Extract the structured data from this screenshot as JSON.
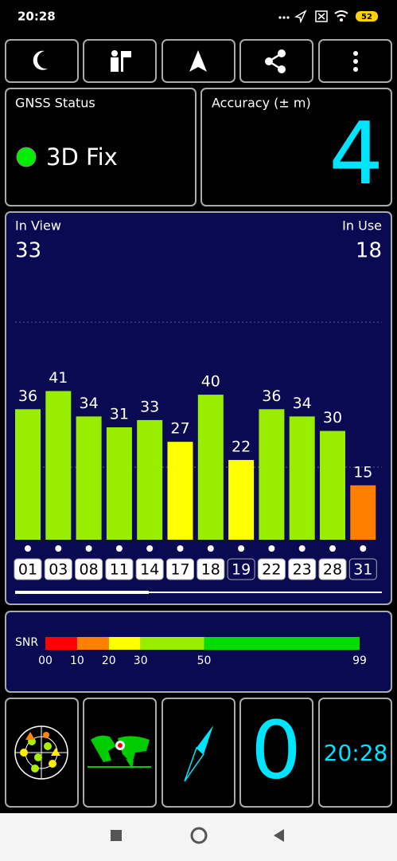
{
  "status_bar": {
    "time": "20:28",
    "battery": "52"
  },
  "gnss": {
    "label": "GNSS Status",
    "fix": "3D Fix"
  },
  "accuracy": {
    "label": "Accuracy (± m)",
    "value": "4"
  },
  "satellites": {
    "in_view_label": "In View",
    "in_view": "33",
    "in_use_label": "In Use",
    "in_use": "18",
    "chart": {
      "type": "bar",
      "categories": [
        "01",
        "03",
        "08",
        "11",
        "14",
        "17",
        "18",
        "19",
        "22",
        "23",
        "28",
        "31"
      ],
      "values": [
        36,
        41,
        34,
        31,
        33,
        27,
        40,
        22,
        36,
        34,
        30,
        15
      ],
      "used": [
        true,
        true,
        true,
        true,
        true,
        true,
        true,
        false,
        true,
        true,
        true,
        false
      ],
      "ylim": [
        0,
        73
      ],
      "grid_values": [
        20,
        60
      ]
    }
  },
  "snr": {
    "label": "SNR",
    "xlim": [
      0,
      99
    ],
    "ticks": [
      {
        "value": 0,
        "label": "00"
      },
      10,
      20,
      30,
      50,
      99
    ],
    "colors": [
      "#ff0000",
      "#ff8000",
      "#ffff00",
      "#99ee00",
      "#00dd00"
    ]
  },
  "tiles": {
    "speed": "0",
    "clock": "20:28"
  }
}
